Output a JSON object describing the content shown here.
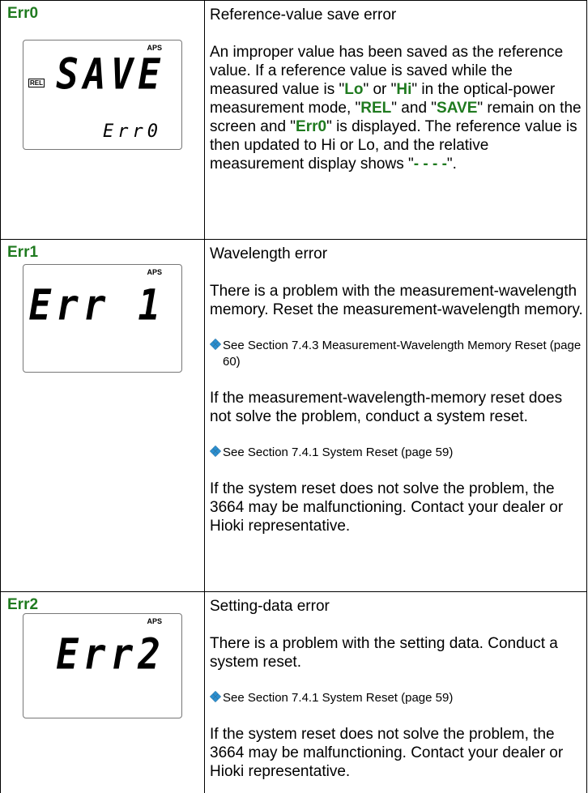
{
  "rows": [
    {
      "code": "Err0",
      "lcd": {
        "indicator": "APS",
        "left_indicator": "REL",
        "main": "SAVE",
        "sub": "Err0"
      },
      "title": "Reference-value save error",
      "blocks": [
        {
          "type": "p",
          "segments": [
            {
              "text": "An improper value has been saved as the reference value. If a reference value is saved while the measured value is \""
            },
            {
              "text": "Lo",
              "strong": true
            },
            {
              "text": "\" or \""
            },
            {
              "text": "Hi",
              "strong": true
            },
            {
              "text": "\" in the optical-power measurement mode, \""
            },
            {
              "text": "REL",
              "strong": true
            },
            {
              "text": "\" and \""
            },
            {
              "text": "SAVE",
              "strong": true
            },
            {
              "text": "\" remain on the screen and \""
            },
            {
              "text": "Err0",
              "strong": true
            },
            {
              "text": "\" is displayed. The reference value is then updated to Hi or Lo, and the relative measurement display shows \""
            },
            {
              "text": "- - - -",
              "strong": true
            },
            {
              "text": "\"."
            }
          ]
        }
      ]
    },
    {
      "code": "Err1",
      "lcd": {
        "indicator": "APS",
        "main": "Err 1"
      },
      "title": "Wavelength error",
      "blocks": [
        {
          "type": "p",
          "segments": [
            {
              "text": "There is a problem with the measurement-wavelength memory. Reset the measurement-wavelength memory."
            }
          ]
        },
        {
          "type": "ref",
          "text": "See Section 7.4.3 Measurement-Wavelength Memory Reset (page 60)"
        },
        {
          "type": "p",
          "segments": [
            {
              "text": "If the measurement-wavelength-memory reset does not solve the problem, conduct a system reset."
            }
          ]
        },
        {
          "type": "ref",
          "text": "See Section 7.4.1 System Reset (page 59)"
        },
        {
          "type": "p",
          "segments": [
            {
              "text": "If the system reset does not solve the problem, the 3664 may be malfunctioning. Contact your dealer or Hioki representative."
            }
          ]
        }
      ]
    },
    {
      "code": "Err2",
      "lcd": {
        "indicator": "APS",
        "main": "Err2"
      },
      "title": "Setting-data error",
      "blocks": [
        {
          "type": "p",
          "segments": [
            {
              "text": "There is a problem with the setting data. Conduct a system reset."
            }
          ]
        },
        {
          "type": "ref",
          "text": "See Section 7.4.1 System Reset (page 59)"
        },
        {
          "type": "p",
          "segments": [
            {
              "text": "If the system reset does not solve the problem, the 3664 may be malfunctioning. Contact your dealer or Hioki representative."
            }
          ]
        }
      ]
    }
  ]
}
